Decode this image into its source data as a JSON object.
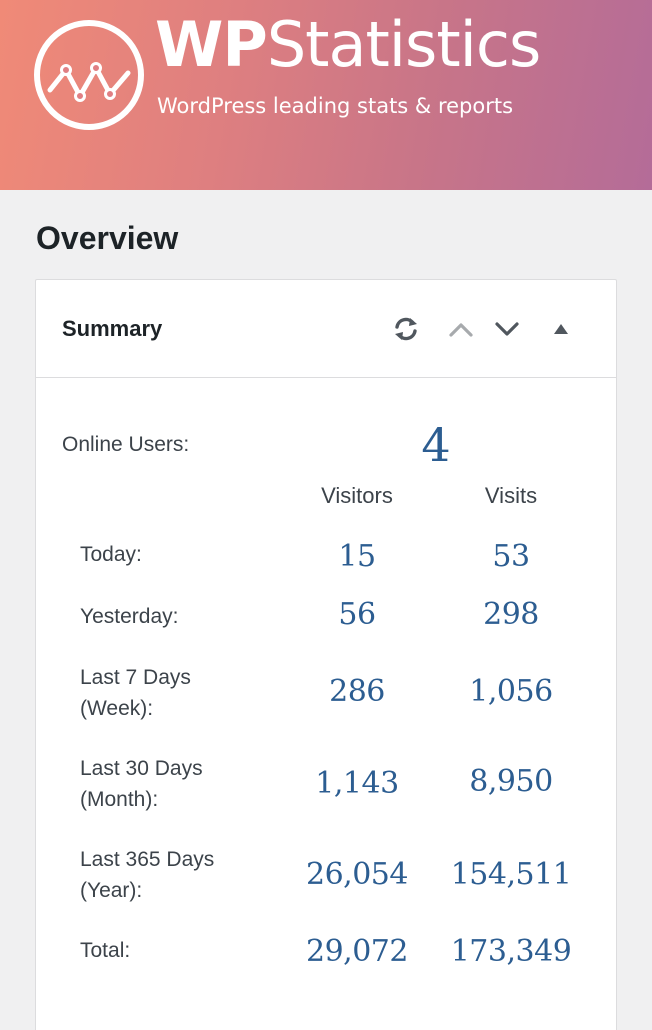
{
  "brand": {
    "name_part1": "WP",
    "name_part2": "Statistics",
    "tagline": "WordPress leading stats & reports"
  },
  "page": {
    "title": "Overview"
  },
  "summary": {
    "title": "Summary",
    "controls": [
      "refresh-icon",
      "move-up-icon",
      "move-down-icon",
      "collapse-icon"
    ],
    "online_label": "Online Users:",
    "online_value": "4",
    "columns": [
      "Visitors",
      "Visits"
    ],
    "rows": [
      {
        "label": "Today:",
        "visitors": "15",
        "visits": "53"
      },
      {
        "label": "Yesterday:",
        "visitors": "56",
        "visits": "298"
      },
      {
        "label": "Last 7 Days\n(Week):",
        "line1": "Last 7 Days",
        "line2": "(Week):",
        "visitors": "286",
        "visits": "1,056"
      },
      {
        "line1": "Last 30 Days",
        "line2": "(Month):",
        "visitors": "1,143",
        "visits": "8,950"
      },
      {
        "line1": "Last 365 Days",
        "line2": "(Year):",
        "visitors": "26,054",
        "visits": "154,511"
      },
      {
        "label": "Total:",
        "visitors": "29,072",
        "visits": "173,349"
      }
    ]
  },
  "colors": {
    "accent": "#2c5d91",
    "banner_start": "#f08a77",
    "banner_end": "#b46c98"
  }
}
